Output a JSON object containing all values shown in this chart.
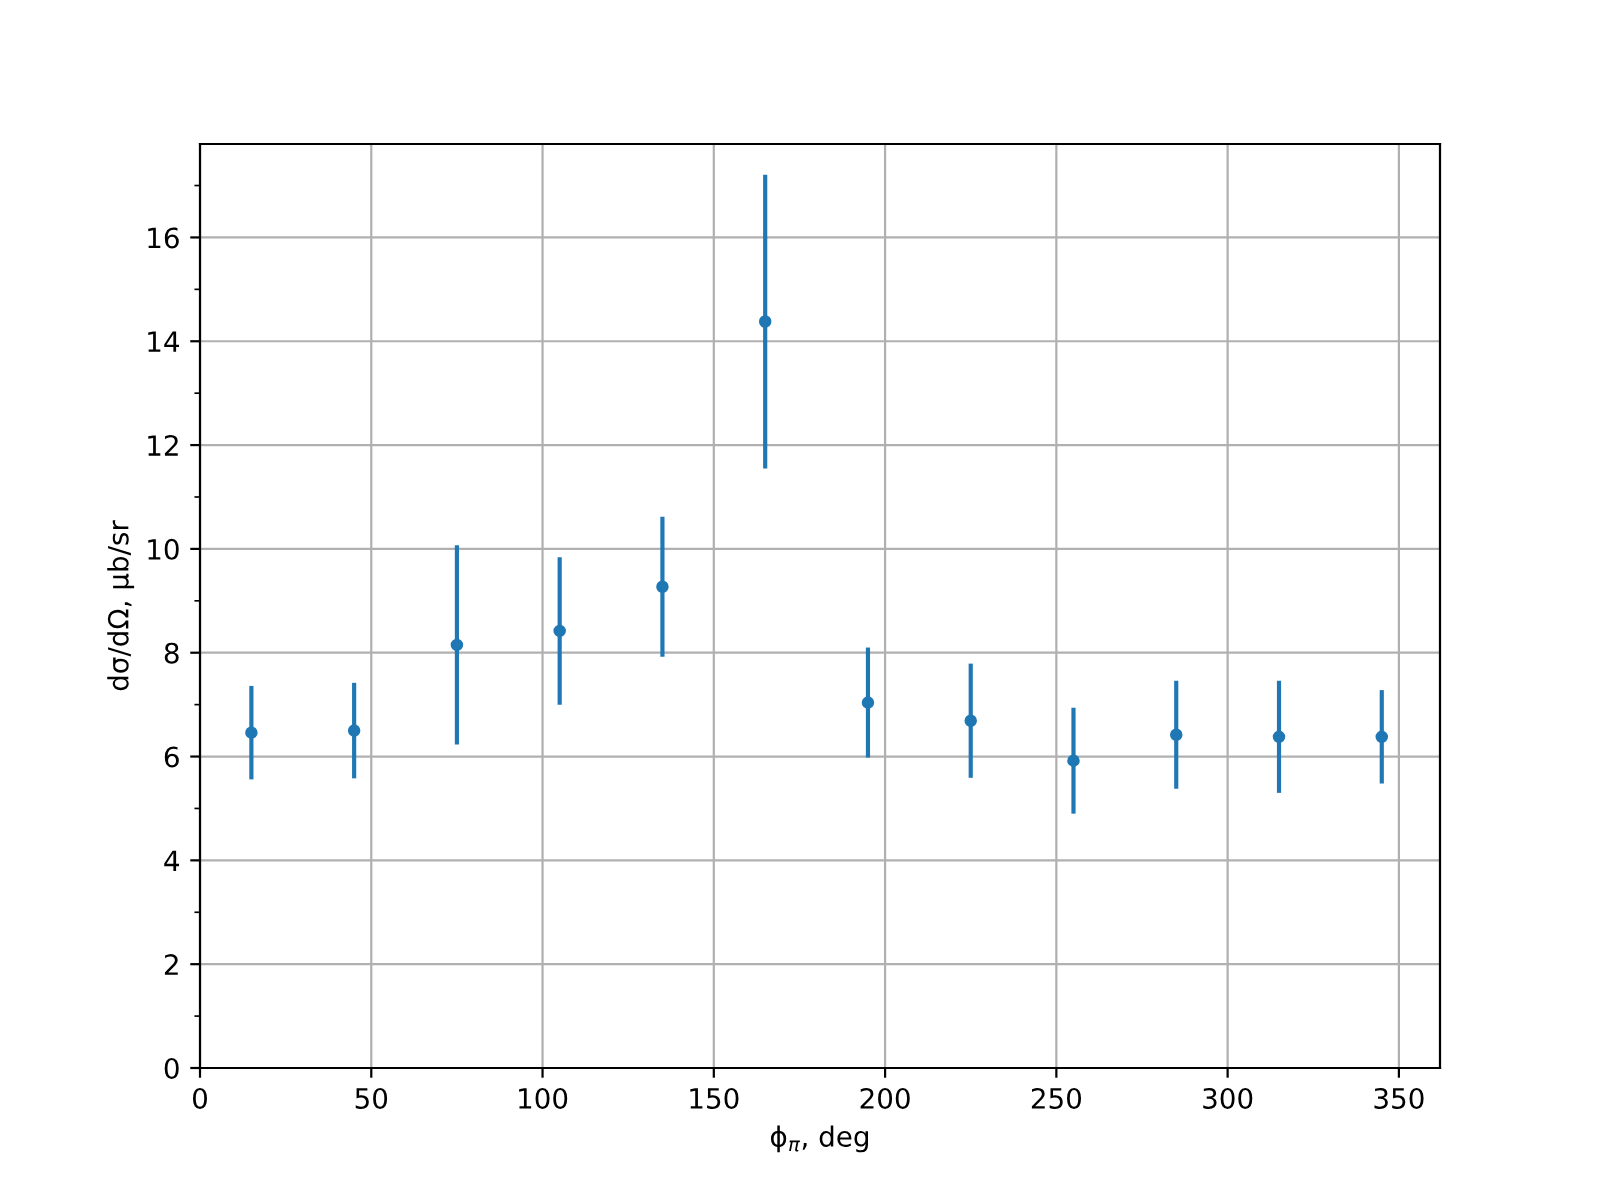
{
  "chart_data": {
    "type": "scatter",
    "xlabel": "ϕ$_{π}$, deg",
    "ylabel": "dσ/dΩ, μb/sr",
    "x": [
      15,
      45,
      75,
      105,
      135,
      165,
      195,
      225,
      255,
      285,
      315,
      345
    ],
    "series": [
      {
        "color": "#1f77b4",
        "values": [
          6.46,
          6.5,
          8.15,
          8.42,
          9.27,
          14.38,
          7.04,
          6.69,
          5.92,
          6.42,
          6.38,
          6.38
        ],
        "errors": [
          0.9,
          0.92,
          1.92,
          1.42,
          1.35,
          2.83,
          1.06,
          1.1,
          1.02,
          1.04,
          1.08,
          0.9
        ]
      }
    ],
    "xlim": [
      0,
      362
    ],
    "ylim": [
      0,
      17.8
    ],
    "xticks": [
      0,
      50,
      100,
      150,
      200,
      250,
      300,
      350
    ],
    "yticks": [
      0,
      2,
      4,
      6,
      8,
      10,
      12,
      14,
      16
    ],
    "grid": true,
    "marker": "circle"
  }
}
